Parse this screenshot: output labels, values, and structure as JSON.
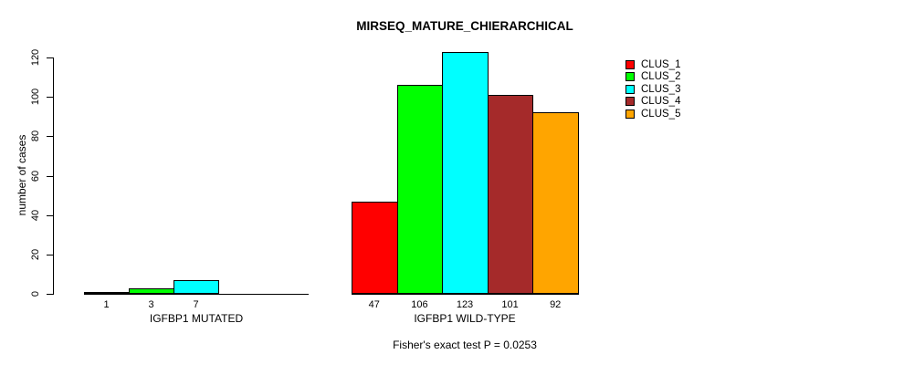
{
  "chart_data": {
    "type": "bar",
    "title": "MIRSEQ_MATURE_CHIERARCHICAL",
    "ylabel": "number of cases",
    "xlabel": "",
    "ylim": [
      0,
      120
    ],
    "yticks": [
      0,
      20,
      40,
      60,
      80,
      100,
      120
    ],
    "grid": false,
    "legend_position": "top-right",
    "legend": [
      "CLUS_1",
      "CLUS_2",
      "CLUS_3",
      "CLUS_4",
      "CLUS_5"
    ],
    "colors": [
      "#ff0000",
      "#00ff00",
      "#00ffff",
      "#a52a2a",
      "#ffa500"
    ],
    "groups": [
      {
        "label": "IGFBP1 MUTATED",
        "values": [
          1,
          3,
          7,
          0,
          0
        ],
        "bar_labels": [
          "1",
          "3",
          "7",
          "",
          ""
        ]
      },
      {
        "label": "IGFBP1 WILD-TYPE",
        "values": [
          47,
          106,
          123,
          101,
          92
        ],
        "bar_labels": [
          "47",
          "106",
          "123",
          "101",
          "92"
        ]
      }
    ],
    "caption": "Fisher's exact test P = 0.0253"
  }
}
